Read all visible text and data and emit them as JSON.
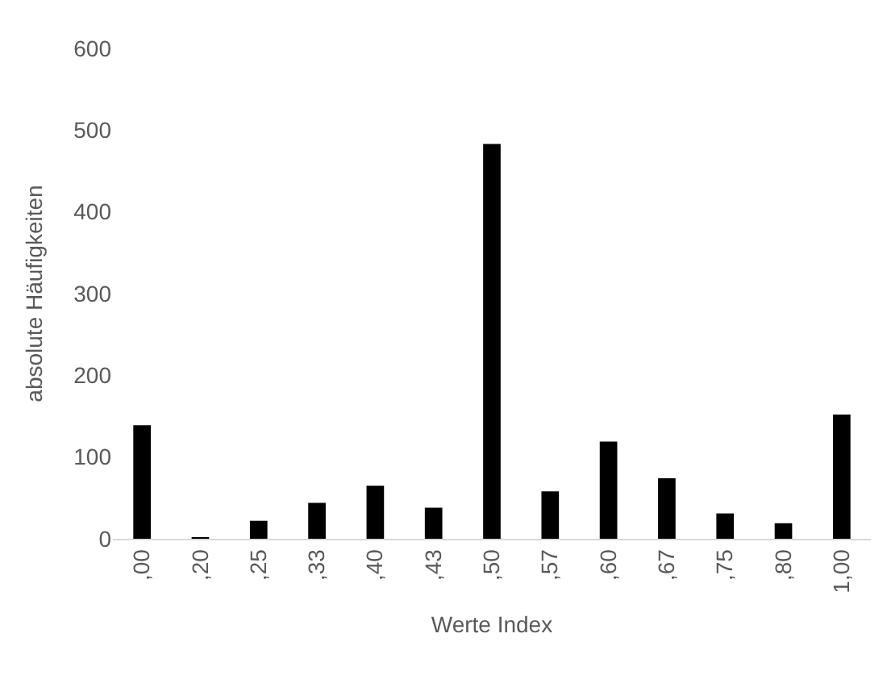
{
  "chart_data": {
    "type": "bar",
    "xlabel": "Werte Index",
    "ylabel": "absolute Häufigkeiten",
    "categories": [
      ",00",
      ",20",
      ",25",
      ",33",
      ",40",
      ",43",
      ",50",
      ",57",
      ",60",
      ",67",
      ",75",
      ",80",
      "1,00"
    ],
    "values": [
      139,
      1,
      22,
      44,
      65,
      38,
      483,
      58,
      119,
      74,
      31,
      19,
      152
    ],
    "color": "#000000",
    "ylim": [
      0,
      600
    ],
    "yticks": [
      0,
      100,
      200,
      300,
      400,
      500,
      600
    ],
    "grid": false
  }
}
